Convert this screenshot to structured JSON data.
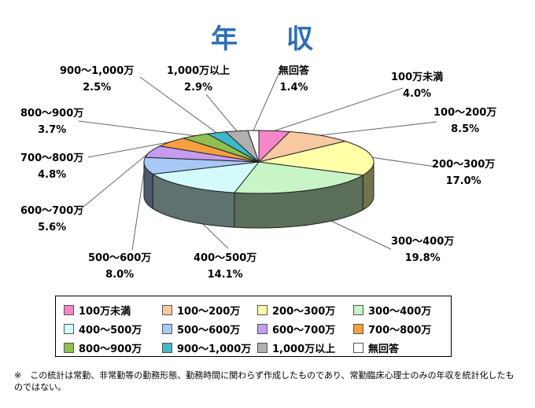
{
  "chart_data": {
    "type": "pie",
    "title": "年　収",
    "legend_position": "bottom",
    "slices": [
      {
        "label": "100万未満",
        "value": 4.0,
        "value_text": "4.0%",
        "color": "#f587c8"
      },
      {
        "label": "100～200万",
        "value": 8.5,
        "value_text": "8.5%",
        "color": "#f8c8a0"
      },
      {
        "label": "200～300万",
        "value": 17.0,
        "value_text": "17.0%",
        "color": "#ffffa8"
      },
      {
        "label": "300～400万",
        "value": 19.8,
        "value_text": "19.8%",
        "color": "#c8f5c8"
      },
      {
        "label": "400～500万",
        "value": 14.1,
        "value_text": "14.1%",
        "color": "#d3fbfb"
      },
      {
        "label": "500～600万",
        "value": 8.0,
        "value_text": "8.0%",
        "color": "#a8c8f5"
      },
      {
        "label": "600～700万",
        "value": 5.6,
        "value_text": "5.6%",
        "color": "#c59cf0"
      },
      {
        "label": "700～800万",
        "value": 4.8,
        "value_text": "4.8%",
        "color": "#f5a040"
      },
      {
        "label": "800～900万",
        "value": 3.7,
        "value_text": "3.7%",
        "color": "#90c050"
      },
      {
        "label": "900～1,000万",
        "value": 2.5,
        "value_text": "2.5%",
        "color": "#40b8c8"
      },
      {
        "label": "1,000万以上",
        "value": 2.9,
        "value_text": "2.9%",
        "color": "#b0b0b0"
      },
      {
        "label": "無回答",
        "value": 1.4,
        "value_text": "1.4%",
        "color": "#ffffff"
      }
    ]
  },
  "footnote": "※　この統計は常勤、非常勤等の勤務形態、勤務時間に関わらず作成したものであり、常勤臨床心理士のみの年収を統計化したものではない。"
}
